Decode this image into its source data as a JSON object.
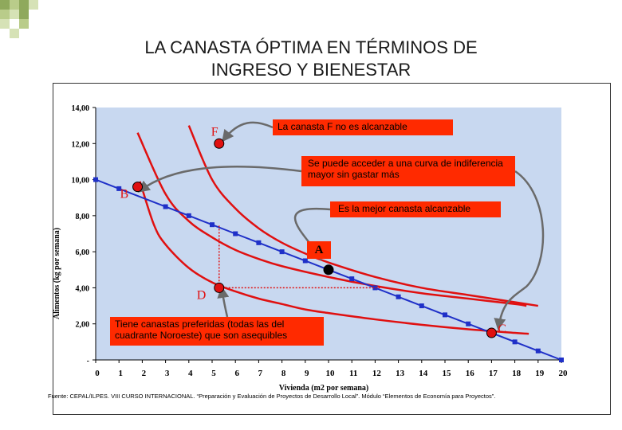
{
  "title_line1": "LA CANASTA ÓPTIMA EN TÉRMINOS DE",
  "title_line2": "INGRESO Y BIENESTAR",
  "annotations": {
    "f_note": "La canasta F no es alcanzable",
    "higher_curve_note": "Se puede acceder a una curva de indiferencia mayor sin gastar más",
    "best_note": "Es la mejor canasta alcanzable",
    "a_label": "A",
    "d_note": "Tiene canastas preferidas (todas las del cuadrante Noroeste) que son asequibles"
  },
  "source": "Fuente: CEPAL/ILPES. VIII CURSO INTERNACIONAL. “Preparación y Evaluación de Proyectos de Desarrollo Local”. Módulo “Elementos de Economía para Proyectos”.",
  "colors": {
    "budget_line": "#1f30c8",
    "indifference": "#e01010",
    "background": "#c8d8f0",
    "note_fill": "#ff2a00"
  },
  "chart_data": {
    "type": "line",
    "xlabel": "Vivienda (m2 por semana)",
    "ylabel": "Alimentos (kg por semana)",
    "xlim": [
      0,
      20
    ],
    "ylim": [
      0,
      14
    ],
    "x_ticks": [
      "0",
      "1",
      "2",
      "3",
      "4",
      "5",
      "6",
      "7",
      "8",
      "9",
      "10",
      "11",
      "12",
      "13",
      "14",
      "15",
      "16",
      "17",
      "18",
      "19",
      "20"
    ],
    "y_ticks": [
      "-",
      "2,00",
      "4,00",
      "6,00",
      "8,00",
      "10,00",
      "12,00",
      "14,00"
    ],
    "budget_line": {
      "x": [
        0,
        1,
        3,
        4,
        5,
        6,
        7,
        8,
        9,
        10,
        11,
        12,
        13,
        14,
        15,
        16,
        17,
        18,
        19,
        20
      ],
      "y": [
        10,
        9.5,
        8.5,
        8,
        7.5,
        7,
        6.5,
        6,
        5.5,
        5,
        4.5,
        4,
        3.5,
        3,
        2.5,
        2,
        1.5,
        1,
        0.5,
        0
      ]
    },
    "indifference_curves": [
      {
        "x": [
          1.8,
          3,
          4,
          5,
          6,
          7,
          8,
          10,
          12,
          14,
          16,
          18,
          18.5
        ],
        "y": [
          12.6,
          9.2,
          7.7,
          6.8,
          6.1,
          5.6,
          5.2,
          4.6,
          4.1,
          3.7,
          3.4,
          3.1,
          3.0
        ]
      },
      {
        "x": [
          1.9,
          2.5,
          3,
          4,
          5,
          6,
          7,
          8,
          9,
          10,
          12,
          14,
          16,
          18,
          18.6
        ],
        "y": [
          9.9,
          7.5,
          6.4,
          5.1,
          4.3,
          3.8,
          3.4,
          3.1,
          2.8,
          2.6,
          2.25,
          1.95,
          1.7,
          1.5,
          1.45
        ]
      },
      {
        "x": [
          4,
          5,
          6,
          7,
          8,
          9,
          10,
          12,
          14,
          16,
          18,
          19
        ],
        "y": [
          13.0,
          10.0,
          8.4,
          7.3,
          6.5,
          5.9,
          5.4,
          4.6,
          4.0,
          3.6,
          3.2,
          3.0
        ]
      }
    ],
    "points": [
      {
        "label": "F",
        "x": 5.3,
        "y": 12.0
      },
      {
        "label": "B",
        "x": 1.8,
        "y": 9.6
      },
      {
        "label": "A",
        "x": 10.0,
        "y": 5.0
      },
      {
        "label": "D",
        "x": 5.3,
        "y": 4.0
      },
      {
        "label": "C",
        "x": 17.0,
        "y": 1.5
      }
    ]
  }
}
